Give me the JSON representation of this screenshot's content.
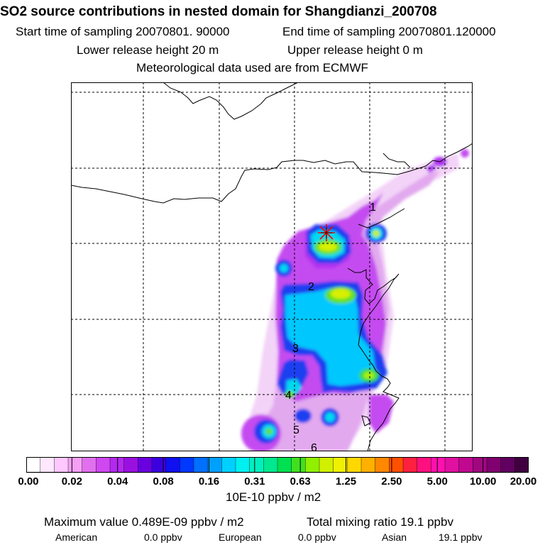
{
  "header": {
    "title": "SO2 source contributions in nested domain for Shangdianzi_200708",
    "start_label": "Start time of sampling 20070801. 90000",
    "end_label": "End time of sampling 20070801.120000",
    "lower_label": "Lower release height   20 m",
    "upper_label": "Upper release height    0 m",
    "met_label": "Meteorological data used are from ECMWF"
  },
  "map": {
    "station_marker": "star-icon",
    "region_labels": [
      "1",
      "2",
      "3",
      "4",
      "5",
      "6"
    ]
  },
  "colorbar": {
    "ticks": [
      "0.00",
      "0.02",
      "0.04",
      "0.08",
      "0.16",
      "0.31",
      "0.63",
      "1.25",
      "2.50",
      "5.00",
      "10.00",
      "20.00"
    ],
    "unit": "10E-10 ppbv / m2",
    "colors": [
      "#ffffff",
      "#ffe8ff",
      "#ffc8ff",
      "#f5a0f5",
      "#e070ee",
      "#cf48f0",
      "#b428f0",
      "#9a10e0",
      "#6a00e0",
      "#3c00e0",
      "#1010f0",
      "#0038ff",
      "#0070ff",
      "#00a0ff",
      "#00d0ff",
      "#00f0f0",
      "#00f0c0",
      "#00e890",
      "#00e050",
      "#40e020",
      "#90f000",
      "#d0f000",
      "#f0f000",
      "#ffd800",
      "#ffb000",
      "#ff8800",
      "#ff5000",
      "#ff2040",
      "#ff1080",
      "#ff10b0",
      "#e010a0",
      "#c00890",
      "#a00880",
      "#800070",
      "#600060",
      "#400040"
    ]
  },
  "footer": {
    "max_label": "Maximum value  0.489E-09 ppbv / m2",
    "total_label": "Total mixing ratio     19.1 ppbv",
    "american_label": "American",
    "american_value": "0.0 ppbv",
    "european_label": "European",
    "european_value": "0.0 ppbv",
    "asian_label": "Asian",
    "asian_value": "19.1 ppbv"
  }
}
